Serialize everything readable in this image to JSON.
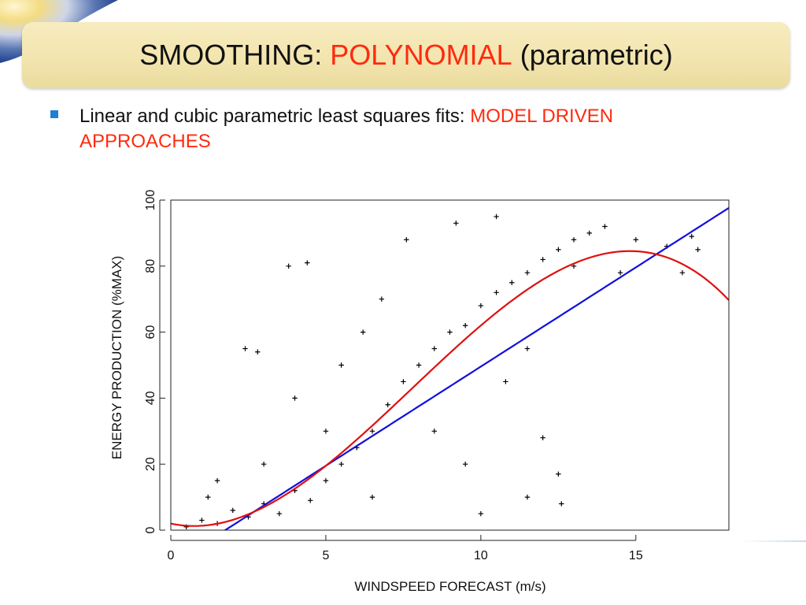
{
  "slide": {
    "title_part1": "SMOOTHING: ",
    "title_accent": "POLYNOMIAL",
    "title_part2": " (parametric)",
    "bullet_text": "Linear and cubic parametric least squares fits: ",
    "bullet_accent": "MODEL DRIVEN APPROACHES"
  },
  "colors": {
    "accent": "#ff2a0e",
    "bullet": "#1e7fd6",
    "linear_fit": "#1010dd",
    "cubic_fit": "#e01010",
    "points": "#000000"
  },
  "chart_data": {
    "type": "scatter",
    "xlabel": "WINDSPEED FORECAST (m/s)",
    "ylabel": "ENERGY PRODUCTION (%MAX)",
    "xlim": [
      0,
      18
    ],
    "ylim": [
      0,
      100
    ],
    "x_ticks": [
      0,
      5,
      10,
      15
    ],
    "y_ticks": [
      0,
      20,
      40,
      60,
      80,
      100
    ],
    "grid": false,
    "marker": "+",
    "sample_points": [
      [
        0.5,
        1
      ],
      [
        1.0,
        3
      ],
      [
        1.5,
        2
      ],
      [
        2.0,
        6
      ],
      [
        2.5,
        4
      ],
      [
        3.0,
        8
      ],
      [
        3.5,
        5
      ],
      [
        4.0,
        12
      ],
      [
        4.5,
        9
      ],
      [
        5.0,
        15
      ],
      [
        5.5,
        20
      ],
      [
        6.0,
        25
      ],
      [
        6.5,
        30
      ],
      [
        7.0,
        38
      ],
      [
        7.5,
        45
      ],
      [
        8.0,
        50
      ],
      [
        8.5,
        55
      ],
      [
        9.0,
        60
      ],
      [
        9.5,
        62
      ],
      [
        10.0,
        68
      ],
      [
        10.5,
        72
      ],
      [
        11.0,
        75
      ],
      [
        11.5,
        78
      ],
      [
        12.0,
        82
      ],
      [
        12.5,
        85
      ],
      [
        13.0,
        88
      ],
      [
        13.5,
        90
      ],
      [
        14.0,
        92
      ],
      [
        15.0,
        88
      ],
      [
        16.0,
        86
      ],
      [
        17.0,
        85
      ],
      [
        3.8,
        80
      ],
      [
        4.4,
        81
      ],
      [
        2.4,
        55
      ],
      [
        2.8,
        54
      ],
      [
        6.2,
        60
      ],
      [
        7.6,
        88
      ],
      [
        9.2,
        93
      ],
      [
        10.5,
        95
      ],
      [
        12.0,
        28
      ],
      [
        12.5,
        17
      ],
      [
        12.6,
        8
      ],
      [
        10.0,
        5
      ],
      [
        11.5,
        10
      ],
      [
        8.5,
        30
      ],
      [
        9.5,
        20
      ],
      [
        10.8,
        45
      ],
      [
        11.5,
        55
      ],
      [
        6.5,
        10
      ],
      [
        5.0,
        30
      ],
      [
        3.0,
        20
      ],
      [
        1.5,
        15
      ],
      [
        1.2,
        10
      ],
      [
        13.0,
        80
      ],
      [
        14.5,
        78
      ],
      [
        16.5,
        78
      ],
      [
        16.8,
        89
      ],
      [
        6.8,
        70
      ],
      [
        5.5,
        50
      ],
      [
        4.0,
        40
      ]
    ],
    "series": [
      {
        "type": "line",
        "coefficients": [
          -10.54,
          6.01
        ]
      },
      {
        "type": "line",
        "coefficients": [
          2.0,
          -2.0,
          1.4,
          -0.06
        ]
      }
    ]
  }
}
